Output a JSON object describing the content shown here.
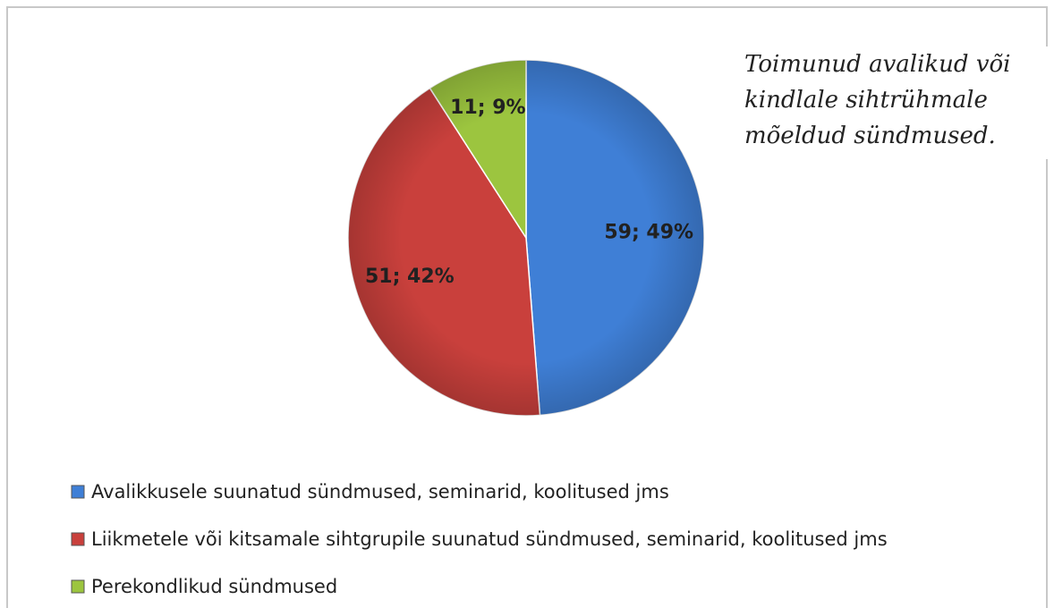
{
  "chart_data": {
    "type": "pie",
    "title": "Toimunud avalikud või kindlale sihtrühmale mõeldud sündmused.",
    "categories": [
      "Avalikkusele suunatud sündmused, seminarid, koolitused jms",
      "Liikmetele või kitsamale sihtgrupile suunatud sündmused, seminarid, koolitused jms",
      "Perekondlikud sündmused"
    ],
    "values": [
      59,
      51,
      11
    ],
    "value_labels": [
      "59; 49%",
      "51; 42%",
      "11; 9%"
    ],
    "colors": [
      "#3f7fd6",
      "#c9403c",
      "#9cc53f"
    ],
    "legend": "bottom"
  }
}
